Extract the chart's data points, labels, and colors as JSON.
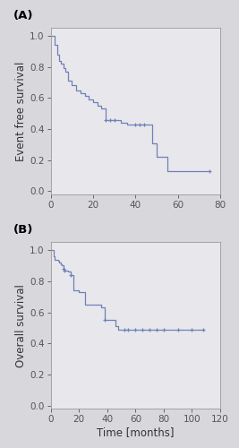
{
  "panel_A": {
    "label": "(A)",
    "ylabel": "Event free survival",
    "xlim": [
      0,
      80
    ],
    "ylim": [
      -0.02,
      1.05
    ],
    "xticks": [
      0,
      20,
      40,
      60,
      80
    ],
    "yticks": [
      0.0,
      0.2,
      0.4,
      0.6,
      0.8,
      1.0
    ],
    "steps_x": [
      0,
      1,
      2,
      3,
      4,
      5,
      6,
      7,
      8,
      10,
      12,
      14,
      16,
      18,
      20,
      22,
      24,
      26,
      28,
      30,
      33,
      36,
      38,
      40,
      42,
      44,
      46,
      48,
      50,
      55,
      57,
      75
    ],
    "steps_y": [
      1.0,
      1.0,
      0.94,
      0.88,
      0.84,
      0.82,
      0.79,
      0.77,
      0.71,
      0.68,
      0.65,
      0.63,
      0.61,
      0.59,
      0.57,
      0.55,
      0.53,
      0.46,
      0.46,
      0.46,
      0.44,
      0.43,
      0.43,
      0.43,
      0.43,
      0.43,
      0.43,
      0.31,
      0.22,
      0.13,
      0.13,
      0.13
    ],
    "censor_x": [
      26,
      28,
      30,
      40,
      42,
      44,
      75
    ],
    "censor_y": [
      0.46,
      0.46,
      0.46,
      0.43,
      0.43,
      0.43,
      0.13
    ]
  },
  "panel_B": {
    "label": "(B)",
    "ylabel": "Overall survival",
    "xlabel": "Time [months]",
    "xlim": [
      0,
      120
    ],
    "ylim": [
      -0.02,
      1.05
    ],
    "xticks": [
      0,
      20,
      40,
      60,
      80,
      100,
      120
    ],
    "yticks": [
      0.0,
      0.2,
      0.4,
      0.6,
      0.8,
      1.0
    ],
    "steps_x": [
      0,
      1,
      2,
      3,
      5,
      6,
      7,
      8,
      9,
      10,
      12,
      14,
      16,
      20,
      22,
      24,
      28,
      30,
      32,
      34,
      36,
      38,
      40,
      44,
      46,
      48,
      52,
      55,
      58,
      60,
      65,
      70,
      75,
      80,
      90,
      100,
      108
    ],
    "steps_y": [
      1.0,
      1.0,
      0.96,
      0.94,
      0.93,
      0.92,
      0.91,
      0.9,
      0.88,
      0.87,
      0.86,
      0.84,
      0.74,
      0.73,
      0.73,
      0.65,
      0.65,
      0.65,
      0.65,
      0.65,
      0.63,
      0.55,
      0.55,
      0.55,
      0.51,
      0.49,
      0.49,
      0.49,
      0.49,
      0.49,
      0.49,
      0.49,
      0.49,
      0.49,
      0.49,
      0.49,
      0.49
    ],
    "censor_x": [
      9,
      10,
      14,
      38,
      52,
      55,
      60,
      65,
      70,
      75,
      80,
      90,
      100,
      108
    ],
    "censor_y": [
      0.88,
      0.87,
      0.84,
      0.55,
      0.49,
      0.49,
      0.49,
      0.49,
      0.49,
      0.49,
      0.49,
      0.49,
      0.49,
      0.49
    ]
  },
  "line_color": "#7080b8",
  "bg_color": "#e8e8ec",
  "fig_color": "#d8d8dc",
  "tick_fontsize": 7.5,
  "label_fontsize": 8.5,
  "panel_label_fontsize": 9.5
}
